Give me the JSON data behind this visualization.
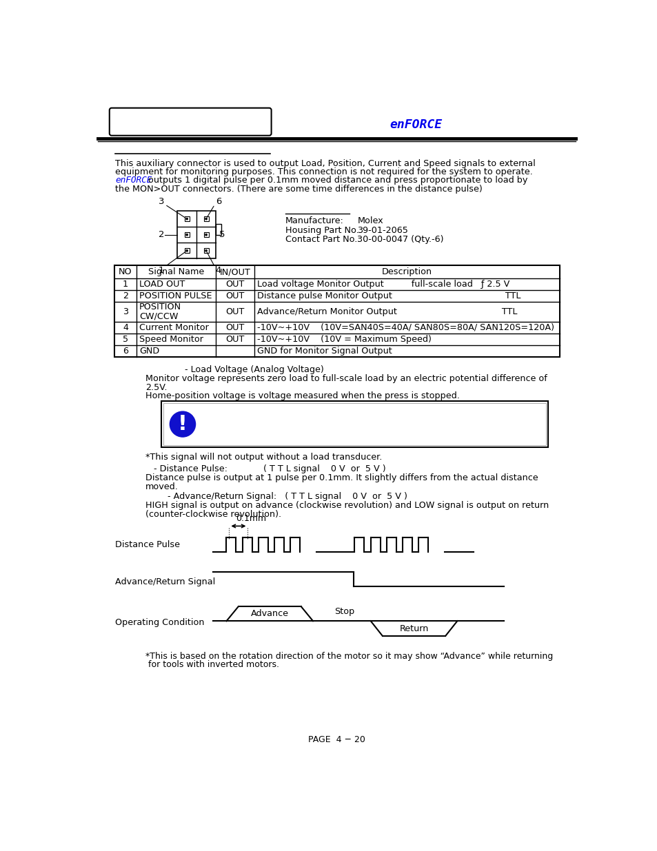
{
  "enforce_text": "enFORCE",
  "enforce_color": "#0000EE",
  "page_text": "PAGE  4 − 20",
  "bg_color": "#FFFFFF",
  "table_headers": [
    "NO",
    "Signal Name",
    "IN/OUT",
    "Description"
  ],
  "table_rows": [
    [
      "1",
      "LOAD OUT",
      "OUT",
      "Load voltage Monitor Output          full-scale load   ƒ 2.5 V"
    ],
    [
      "2",
      "POSITION PULSE",
      "OUT",
      "Distance pulse Monitor Output                                         TTL"
    ],
    [
      "3",
      "POSITION\nCW/CCW",
      "OUT",
      "Advance/Return Monitor Output                                      TTL"
    ],
    [
      "4",
      "Current Monitor",
      "OUT",
      "-10V~+10V    (10V=SAN40S=40A/ SAN80S=80A/ SAN120S=120A)"
    ],
    [
      "5",
      "Speed Monitor",
      "OUT",
      "-10V~+10V    (10V = Maximum Speed)"
    ],
    [
      "6",
      "GND",
      "",
      "GND for Monitor Signal Output"
    ]
  ]
}
